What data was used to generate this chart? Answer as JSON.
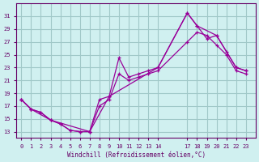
{
  "xlabel": "Windchill (Refroidissement éolien,°C)",
  "bg_color": "#d0f0f0",
  "grid_color": "#a0c8c8",
  "line_color": "#990099",
  "line1": {
    "x": [
      0,
      1,
      2,
      3,
      4,
      5,
      6,
      7,
      8,
      9,
      10,
      11,
      12,
      13,
      14,
      17,
      18,
      19,
      20,
      21,
      22,
      23
    ],
    "y": [
      18,
      16.5,
      16,
      14.8,
      14.2,
      13.2,
      13.0,
      13.0,
      18.0,
      18.5,
      24.5,
      21.5,
      22.0,
      22.5,
      23.0,
      31.5,
      29.5,
      27.5,
      28.0,
      25.5,
      23.0,
      22.5
    ]
  },
  "line2": {
    "x": [
      0,
      1,
      2,
      3,
      4,
      5,
      6,
      7,
      8,
      9,
      10,
      11,
      12,
      13,
      14,
      17,
      18,
      19,
      20,
      21,
      22,
      23
    ],
    "y": [
      18,
      16.5,
      16,
      14.8,
      14.2,
      13.2,
      13.0,
      13.0,
      17.0,
      18.0,
      22.0,
      21.0,
      21.5,
      22.0,
      22.5,
      27.0,
      28.5,
      28.0,
      26.5,
      25.0,
      22.5,
      22.0
    ]
  },
  "line3": {
    "x": [
      0,
      1,
      3,
      7,
      9,
      14,
      17,
      18,
      20,
      22,
      23
    ],
    "y": [
      18,
      16.5,
      14.8,
      13.0,
      18.5,
      23.0,
      31.5,
      29.5,
      28.0,
      23.0,
      22.5
    ]
  },
  "yticks": [
    13,
    15,
    17,
    19,
    21,
    23,
    25,
    27,
    29,
    31
  ],
  "xtick_positions": [
    0,
    1,
    2,
    3,
    4,
    5,
    6,
    7,
    8,
    9,
    10,
    11,
    12,
    13,
    14,
    17,
    18,
    19,
    20,
    21,
    22,
    23
  ],
  "xtick_labels": [
    "0",
    "1",
    "2",
    "3",
    "4",
    "5",
    "6",
    "7",
    "8",
    "9",
    "10",
    "11",
    "12",
    "13",
    "14",
    "17",
    "18",
    "19",
    "20",
    "21",
    "22",
    "23"
  ],
  "ylim": [
    12,
    33
  ],
  "xlim": [
    -0.5,
    24
  ]
}
